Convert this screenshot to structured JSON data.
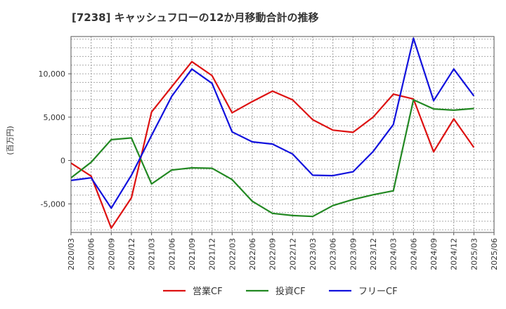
{
  "chart_data": {
    "type": "line",
    "title": "[7238]  キャッシュフローの12か月移動合計の推移",
    "ylabel": "(百万円)",
    "xlabel": "",
    "ylim": [
      -8300,
      14300
    ],
    "yticks": [
      10000,
      5000,
      0,
      -5000
    ],
    "ytick_labels": [
      "10,000",
      "5,000",
      "0",
      "-5,000"
    ],
    "categories": [
      "2020/03",
      "2020/06",
      "2020/09",
      "2020/12",
      "2021/03",
      "2021/06",
      "2021/09",
      "2021/12",
      "2022/03",
      "2022/06",
      "2022/09",
      "2022/12",
      "2023/03",
      "2023/06",
      "2023/09",
      "2023/12",
      "2024/03",
      "2024/06",
      "2024/09",
      "2024/12",
      "2025/03",
      "2025/06"
    ],
    "grid": true,
    "legend_position": "bottom-center",
    "series": [
      {
        "name": "営業CF",
        "color": "#dd1111",
        "values": [
          -300,
          -1800,
          -7800,
          -4300,
          5600,
          8500,
          11400,
          9800,
          5500,
          6800,
          8000,
          7000,
          4700,
          3500,
          3250,
          5000,
          7650,
          7100,
          1000,
          4800,
          1500,
          null
        ]
      },
      {
        "name": "投資CF",
        "color": "#228822",
        "values": [
          -2000,
          -200,
          2400,
          2600,
          -2700,
          -1100,
          -850,
          -900,
          -2200,
          -4700,
          -6100,
          -6350,
          -6450,
          -5200,
          -4500,
          -3950,
          -3500,
          7000,
          5950,
          5800,
          6000,
          null
        ]
      },
      {
        "name": "フリーCF",
        "color": "#1111dd",
        "values": [
          -2300,
          -2000,
          -5500,
          -1700,
          2900,
          7400,
          10550,
          8900,
          3300,
          2150,
          1900,
          750,
          -1700,
          -1750,
          -1300,
          1050,
          4150,
          14100,
          6900,
          10550,
          7450,
          null
        ]
      }
    ]
  }
}
